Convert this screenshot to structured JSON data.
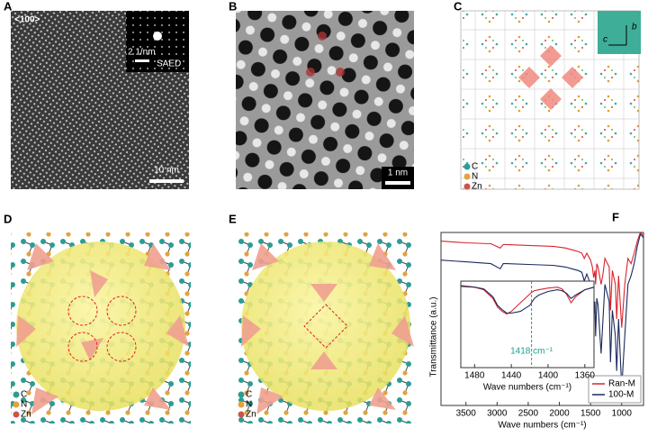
{
  "panels": {
    "A": {
      "label": "A",
      "view": "<100>",
      "inset_scale": "2 1/nm",
      "inset_label": "SAED",
      "scale_bar": "10 nm"
    },
    "B": {
      "label": "B",
      "scale_bar": "1 nm"
    },
    "C": {
      "label": "C",
      "axes": [
        "b",
        "c"
      ],
      "legend": [
        "C",
        "N",
        "Zn"
      ]
    },
    "D": {
      "label": "D",
      "legend": [
        "C",
        "N",
        "Zn"
      ]
    },
    "E": {
      "label": "E",
      "legend": [
        "C",
        "N",
        "Zn"
      ]
    },
    "F": {
      "label": "F"
    }
  },
  "chart_data": [
    {
      "type": "line",
      "xlabel": "Wave numbers (cm⁻¹)",
      "ylabel": "Transmittance (a.u.)",
      "x": [
        3900,
        3500,
        3100,
        2950,
        2900,
        2850,
        2500,
        2100,
        2000,
        1900,
        1800,
        1700,
        1640,
        1600,
        1560,
        1500,
        1470,
        1450,
        1430,
        1418,
        1400,
        1380,
        1330,
        1300,
        1270,
        1200,
        1180,
        1150,
        1100,
        1080,
        1050,
        1000,
        950,
        900,
        850,
        800,
        750,
        700,
        650
      ],
      "xlim": [
        3900,
        650
      ],
      "ylim": [
        0,
        100
      ],
      "xticks": [
        3500,
        3000,
        2500,
        2000,
        1500,
        1000
      ],
      "legend": "lower right",
      "series": [
        {
          "name": "Ran-M",
          "color": "#d9252e",
          "values": [
            95,
            94,
            93.5,
            91,
            93,
            93,
            92.5,
            92,
            91.5,
            91,
            90,
            89,
            88,
            85,
            88,
            84,
            80,
            74,
            78,
            70,
            82,
            80,
            70,
            76,
            85,
            80,
            55,
            78,
            70,
            50,
            75,
            45,
            70,
            85,
            82,
            88,
            95,
            100,
            98
          ]
        },
        {
          "name": "100-M",
          "color": "#1c2a5c",
          "values": [
            84,
            83,
            82,
            79,
            82,
            82,
            81.5,
            81,
            80.5,
            80,
            79,
            78,
            77,
            72,
            76,
            70,
            62,
            50,
            60,
            40,
            62,
            58,
            30,
            50,
            70,
            60,
            25,
            55,
            40,
            20,
            50,
            10,
            40,
            70,
            75,
            82,
            92,
            99,
            97
          ]
        }
      ]
    },
    {
      "type": "line",
      "xlabel": "Wave numbers (cm⁻¹)",
      "x": [
        1495,
        1480,
        1470,
        1460,
        1455,
        1450,
        1445,
        1440,
        1430,
        1420,
        1418,
        1415,
        1410,
        1400,
        1390,
        1385,
        1380,
        1375,
        1370,
        1360,
        1350
      ],
      "xlim": [
        1495,
        1350
      ],
      "ylim": [
        0,
        100
      ],
      "xticks": [
        1480,
        1440,
        1400,
        1360
      ],
      "annotation": {
        "text": "1418 cm⁻¹",
        "x": 1418
      },
      "series": [
        {
          "color": "#d9252e",
          "values": [
            95,
            93,
            90,
            80,
            70,
            65,
            62,
            65,
            75,
            85,
            87,
            89,
            90,
            92,
            93,
            91,
            85,
            75,
            82,
            90,
            93
          ]
        },
        {
          "color": "#1c2a5c",
          "values": [
            94,
            93,
            91,
            82,
            72,
            67,
            63,
            63,
            65,
            72,
            75,
            80,
            84,
            88,
            90,
            89,
            86,
            80,
            84,
            90,
            93
          ]
        }
      ]
    }
  ]
}
